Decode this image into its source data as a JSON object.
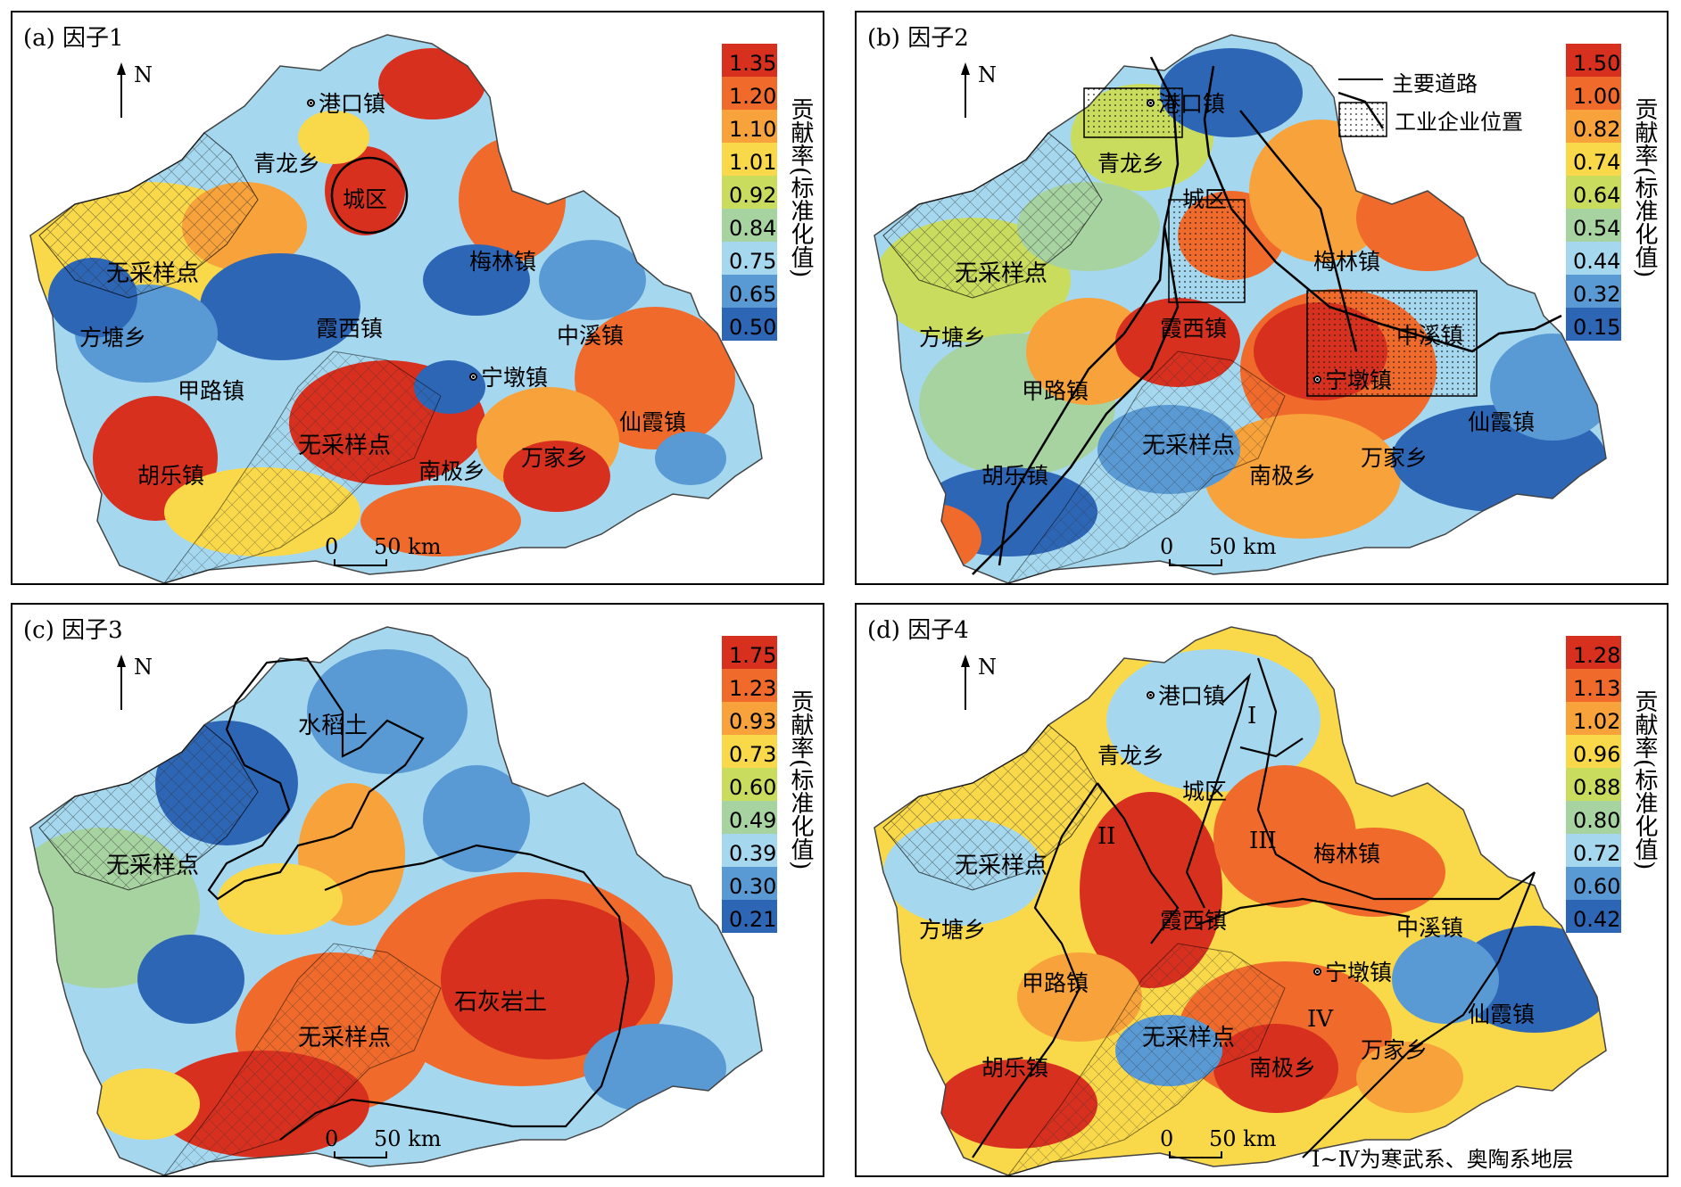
{
  "panels": [
    {
      "title": "(a) 因子1",
      "north": "N",
      "legend_title": "贡献率(标准化值)",
      "legend_ticks": [
        "1.35",
        "1.20",
        "1.10",
        "1.01",
        "0.92",
        "0.84",
        "0.75",
        "0.65",
        "0.50"
      ],
      "places": [
        "港口镇",
        "青龙乡",
        "城区",
        "梅林镇",
        "方塘乡",
        "霞西镇",
        "中溪镇",
        "甲路镇",
        "宁墩镇",
        "仙霞镇",
        "胡乐镇",
        "南极乡",
        "万家乡"
      ],
      "zones": [
        "无采样点",
        "无采样点"
      ],
      "scale": {
        "zero": "0",
        "label": "50 km"
      }
    },
    {
      "title": "(b) 因子2",
      "north": "N",
      "legend_title": "贡献率(标准化值)",
      "legend_ticks": [
        "1.50",
        "1.00",
        "0.82",
        "0.74",
        "0.64",
        "0.54",
        "0.44",
        "0.32",
        "0.15"
      ],
      "places": [
        "港口镇",
        "青龙乡",
        "城区",
        "梅林镇",
        "方塘乡",
        "霞西镇",
        "中溪镇",
        "甲路镇",
        "宁墩镇",
        "仙霞镇",
        "胡乐镇",
        "南极乡",
        "万家乡"
      ],
      "zones": [
        "无采样点",
        "无采样点"
      ],
      "scale": {
        "zero": "0",
        "label": "50 km"
      },
      "keys": [
        "主要道路",
        "工业企业位置"
      ]
    },
    {
      "title": "(c) 因子3",
      "north": "N",
      "legend_title": "贡献率(标准化值)",
      "legend_ticks": [
        "1.75",
        "1.23",
        "0.93",
        "0.73",
        "0.60",
        "0.49",
        "0.39",
        "0.30",
        "0.21"
      ],
      "zones": [
        "水稻土",
        "无采样点",
        "无采样点",
        "石灰岩土"
      ],
      "scale": {
        "zero": "0",
        "label": "50 km"
      }
    },
    {
      "title": "(d) 因子4",
      "north": "N",
      "legend_title": "贡献率(标准化值)",
      "legend_ticks": [
        "1.28",
        "1.13",
        "1.02",
        "0.96",
        "0.88",
        "0.80",
        "0.72",
        "0.60",
        "0.42"
      ],
      "places": [
        "港口镇",
        "青龙乡",
        "城区",
        "梅林镇",
        "方塘乡",
        "霞西镇",
        "中溪镇",
        "甲路镇",
        "宁墩镇",
        "仙霞镇",
        "胡乐镇",
        "南极乡",
        "万家乡"
      ],
      "zones": [
        "无采样点",
        "无采样点"
      ],
      "strata": [
        "I",
        "II",
        "III",
        "IV"
      ],
      "scale": {
        "zero": "0",
        "label": "50 km"
      },
      "footnote": "Ⅰ~Ⅳ为寒武系、奥陶系地层"
    }
  ],
  "colors": {
    "ramp": [
      "#d7301f",
      "#ef6a2b",
      "#f7a23a",
      "#f9d84a",
      "#c9dc5e",
      "#a7d3a1",
      "#a5d8ef",
      "#5a9ad4",
      "#2e66b6"
    ],
    "boundary": "#000000"
  }
}
